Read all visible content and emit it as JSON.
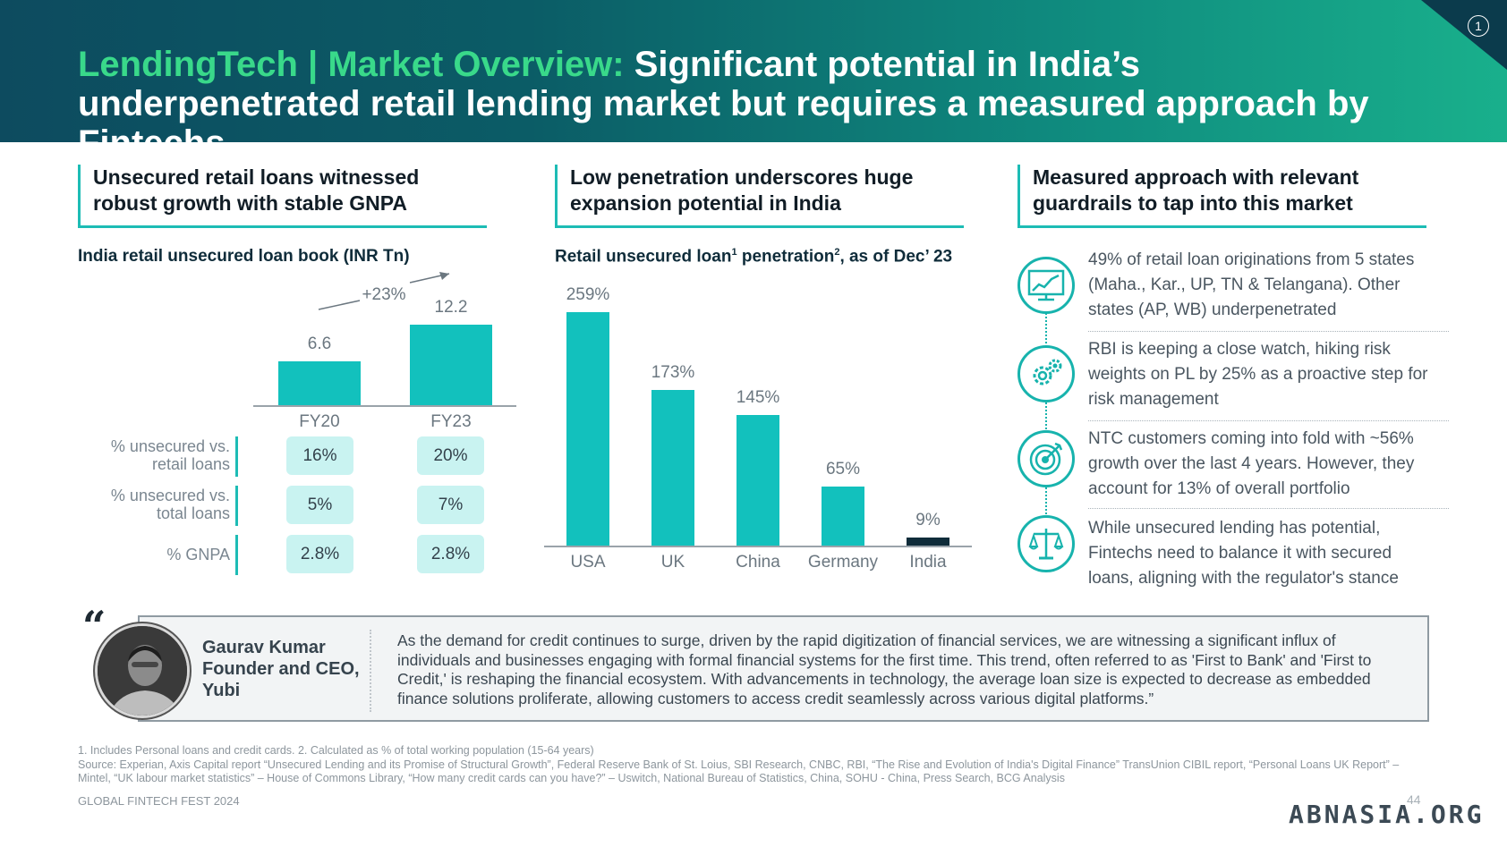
{
  "header": {
    "title_accent": "LendingTech | Market Overview:",
    "title_rest": " Significant potential in India’s underpenetrated retail lending market but requires a measured approach by Fintechs",
    "page_badge": "1"
  },
  "columns": [
    {
      "heading": "Unsecured retail loans witnessed robust growth with stable GNPA"
    },
    {
      "heading": "Low penetration underscores huge expansion potential in India"
    },
    {
      "heading": "Measured approach with relevant guardrails to tap into this market"
    }
  ],
  "left_chart": {
    "title": "India retail unsecured loan book (INR Tn)",
    "growth_label": "+23%",
    "metrics": [
      {
        "label_line1": "% unsecured vs.",
        "label_line2": "retail loans",
        "values": [
          "16%",
          "20%"
        ]
      },
      {
        "label_line1": "% unsecured vs.",
        "label_line2": "total loans",
        "values": [
          "5%",
          "7%"
        ]
      },
      {
        "label_line1": "% GNPA",
        "label_line2": "",
        "values": [
          "2.8%",
          "2.8%"
        ]
      }
    ]
  },
  "mid_chart": {
    "title_part1": "Retail unsecured loan",
    "sup1": "1",
    "title_part2": " penetration",
    "sup2": "2",
    "title_part3": ", as of Dec’ 23"
  },
  "chart_data": [
    {
      "type": "bar",
      "title": "India retail unsecured loan book (INR Tn)",
      "categories": [
        "FY20",
        "FY23"
      ],
      "values": [
        6.6,
        12.2
      ],
      "value_labels": [
        "6.6",
        "12.2"
      ],
      "ylim": [
        0,
        12.2
      ],
      "annotation": "+23%",
      "colors": [
        "#12c1bd",
        "#12c1bd"
      ]
    },
    {
      "type": "bar",
      "title": "Retail unsecured loan1 penetration2, as of Dec’ 23",
      "categories": [
        "USA",
        "UK",
        "China",
        "Germany",
        "India"
      ],
      "values": [
        259,
        173,
        145,
        65,
        9
      ],
      "value_labels": [
        "259%",
        "173%",
        "145%",
        "65%",
        "9%"
      ],
      "ylim": [
        0,
        259
      ],
      "colors": [
        "#12c1bd",
        "#12c1bd",
        "#12c1bd",
        "#12c1bd",
        "#0f2c3a"
      ]
    }
  ],
  "points": [
    {
      "icon": "growth-chart-icon",
      "text": "49% of retail loan originations from 5 states (Maha., Kar., UP, TN & Telangana). Other states (AP, WB) underpenetrated"
    },
    {
      "icon": "gears-icon",
      "text": "RBI is keeping a close watch, hiking risk weights on PL by 25% as a proactive step for risk management"
    },
    {
      "icon": "target-icon",
      "text": "NTC customers coming into fold with ~56% growth over the last 4 years. However, they account for 13% of overall portfolio"
    },
    {
      "icon": "scales-icon",
      "text": "While unsecured lending has potential, Fintechs need to balance it with secured loans, aligning with the regulator's stance"
    }
  ],
  "quote": {
    "mark": "“",
    "name": "Gaurav Kumar",
    "role_line1": "Founder and CEO,",
    "role_line2": "Yubi",
    "text": "As the demand for credit continues to surge, driven by the rapid digitization of financial services, we are witnessing a significant influx of individuals and businesses engaging with formal financial systems for the first time. This trend, often referred to as 'First to Bank' and 'First to Credit,' is reshaping the financial ecosystem. With advancements in technology, the average loan size is expected to decrease as embedded finance solutions proliferate, allowing customers to access credit seamlessly across various digital platforms.”"
  },
  "footnote": {
    "line1": "1. Includes Personal loans and credit cards. 2. Calculated as % of total working population (15-64 years)",
    "line2": "Source: Experian, Axis Capital report “Unsecured Lending and its Promise of Structural Growth”, Federal Reserve Bank of St. Loius, SBI Research, CNBC, RBI, “The Rise and Evolution of India's Digital Finance” TransUnion CIBIL report, “Personal Loans UK Report” – Mintel, “UK labour market statistics” – House of Commons Library, “How many credit cards can you have?” – Uswitch, National Bureau of Statistics, China, SOHU - China, Press Search, BCG Analysis"
  },
  "footer": {
    "event": "GLOBAL FINTECH FEST 2024",
    "page_number": "44",
    "watermark": "ABNASIA.ORG"
  }
}
